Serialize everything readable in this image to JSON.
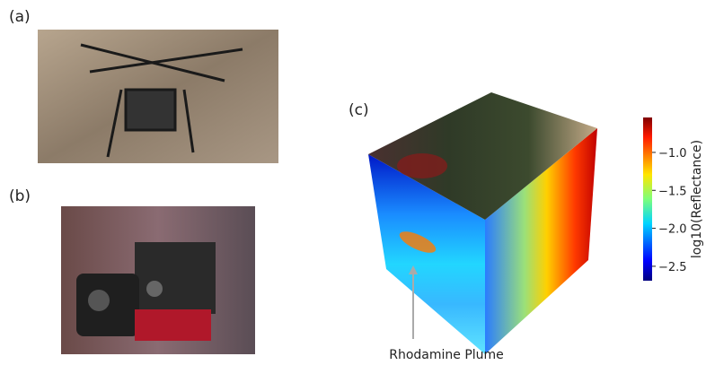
{
  "panels": [
    {
      "label": "(a)"
    },
    {
      "label": "(b)"
    },
    {
      "label": "(c)"
    }
  ],
  "annotation": "Rhodamine Plume",
  "colorbar": {
    "title": "log10(Reflectance)",
    "lim": [
      -2.69,
      -0.54
    ],
    "ticks": [
      {
        "value": -1.0,
        "label": "−1.0"
      },
      {
        "value": -1.5,
        "label": "−1.5"
      },
      {
        "value": -2.0,
        "label": "−2.0"
      },
      {
        "value": -2.5,
        "label": "−2.5"
      }
    ]
  }
}
